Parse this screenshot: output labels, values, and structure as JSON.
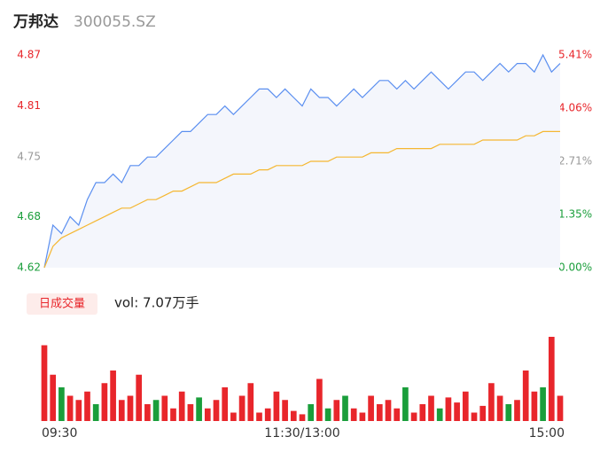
{
  "header": {
    "name": "万邦达",
    "code": "300055.SZ"
  },
  "chart_data": {
    "type": "line",
    "x": [
      0,
      4,
      8,
      12,
      16,
      20,
      24,
      28,
      32,
      36,
      40,
      44,
      48,
      52,
      56,
      60,
      64,
      68,
      72,
      76,
      80,
      84,
      88,
      92,
      96,
      100,
      104,
      108,
      112,
      116,
      120,
      124,
      128,
      132,
      136,
      140,
      144,
      148,
      152,
      156,
      160,
      164,
      168,
      172,
      176,
      180,
      184,
      188,
      192,
      196,
      200,
      204,
      208,
      212,
      216,
      220,
      224,
      228,
      232,
      236,
      240
    ],
    "xlim": [
      0,
      240
    ],
    "xticks": [
      {
        "value": 0,
        "label": "09:30"
      },
      {
        "value": 120,
        "label": "11:30/13:00"
      },
      {
        "value": 240,
        "label": "15:00"
      }
    ],
    "ylim": [
      4.62,
      4.87
    ],
    "yticks": [
      4.87,
      4.81,
      4.75,
      4.68,
      4.62
    ],
    "ytick_colors": [
      "#e8262b",
      "#e8262b",
      "#999999",
      "#1a9e3b",
      "#1a9e3b"
    ],
    "y2lim": [
      0,
      5.41
    ],
    "y2ticks": [
      {
        "value": 5.41,
        "label": "5.41%"
      },
      {
        "value": 4.06,
        "label": "4.06%"
      },
      {
        "value": 2.71,
        "label": "2.71%"
      },
      {
        "value": 1.35,
        "label": "1.35%"
      },
      {
        "value": 0,
        "label": "0.00%"
      }
    ],
    "series": [
      {
        "name": "price",
        "color": "#5b8ff0",
        "values": [
          4.62,
          4.67,
          4.66,
          4.68,
          4.67,
          4.7,
          4.72,
          4.72,
          4.73,
          4.72,
          4.74,
          4.74,
          4.75,
          4.75,
          4.76,
          4.77,
          4.78,
          4.78,
          4.79,
          4.8,
          4.8,
          4.81,
          4.8,
          4.81,
          4.82,
          4.83,
          4.83,
          4.82,
          4.83,
          4.82,
          4.81,
          4.83,
          4.82,
          4.82,
          4.81,
          4.82,
          4.83,
          4.82,
          4.83,
          4.84,
          4.84,
          4.83,
          4.84,
          4.83,
          4.84,
          4.85,
          4.84,
          4.83,
          4.84,
          4.85,
          4.85,
          4.84,
          4.85,
          4.86,
          4.85,
          4.86,
          4.86,
          4.85,
          4.87,
          4.85,
          4.86
        ]
      },
      {
        "name": "average",
        "color": "#f5b731",
        "values": [
          4.62,
          4.645,
          4.655,
          4.66,
          4.665,
          4.67,
          4.675,
          4.68,
          4.685,
          4.69,
          4.69,
          4.695,
          4.7,
          4.7,
          4.705,
          4.71,
          4.71,
          4.715,
          4.72,
          4.72,
          4.72,
          4.725,
          4.73,
          4.73,
          4.73,
          4.735,
          4.735,
          4.74,
          4.74,
          4.74,
          4.74,
          4.745,
          4.745,
          4.745,
          4.75,
          4.75,
          4.75,
          4.75,
          4.755,
          4.755,
          4.755,
          4.76,
          4.76,
          4.76,
          4.76,
          4.76,
          4.765,
          4.765,
          4.765,
          4.765,
          4.765,
          4.77,
          4.77,
          4.77,
          4.77,
          4.77,
          4.775,
          4.775,
          4.78,
          4.78,
          4.78
        ]
      }
    ],
    "volume": {
      "legend": "日成交量",
      "summary": "vol: 7.07万手",
      "ylim": [
        0,
        100
      ],
      "up_color": "#e8262b",
      "down_color": "#1a9e3b",
      "values": [
        90,
        55,
        40,
        30,
        25,
        35,
        20,
        45,
        60,
        25,
        30,
        55,
        20,
        25,
        30,
        15,
        35,
        20,
        28,
        15,
        25,
        40,
        10,
        30,
        45,
        10,
        15,
        35,
        25,
        12,
        8,
        20,
        50,
        15,
        25,
        30,
        15,
        10,
        30,
        20,
        25,
        15,
        40,
        10,
        20,
        30,
        15,
        28,
        22,
        35,
        10,
        18,
        45,
        30,
        20,
        25,
        60,
        35,
        40,
        100,
        30
      ],
      "direction": [
        "up",
        "up",
        "down",
        "up",
        "up",
        "up",
        "down",
        "up",
        "up",
        "up",
        "up",
        "up",
        "up",
        "down",
        "up",
        "up",
        "up",
        "up",
        "down",
        "up",
        "up",
        "up",
        "up",
        "up",
        "up",
        "up",
        "up",
        "up",
        "up",
        "up",
        "up",
        "down",
        "up",
        "down",
        "up",
        "down",
        "up",
        "up",
        "up",
        "up",
        "up",
        "up",
        "down",
        "up",
        "up",
        "up",
        "down",
        "up",
        "up",
        "up",
        "up",
        "up",
        "up",
        "up",
        "down",
        "up",
        "up",
        "up",
        "down",
        "up",
        "up"
      ]
    }
  }
}
